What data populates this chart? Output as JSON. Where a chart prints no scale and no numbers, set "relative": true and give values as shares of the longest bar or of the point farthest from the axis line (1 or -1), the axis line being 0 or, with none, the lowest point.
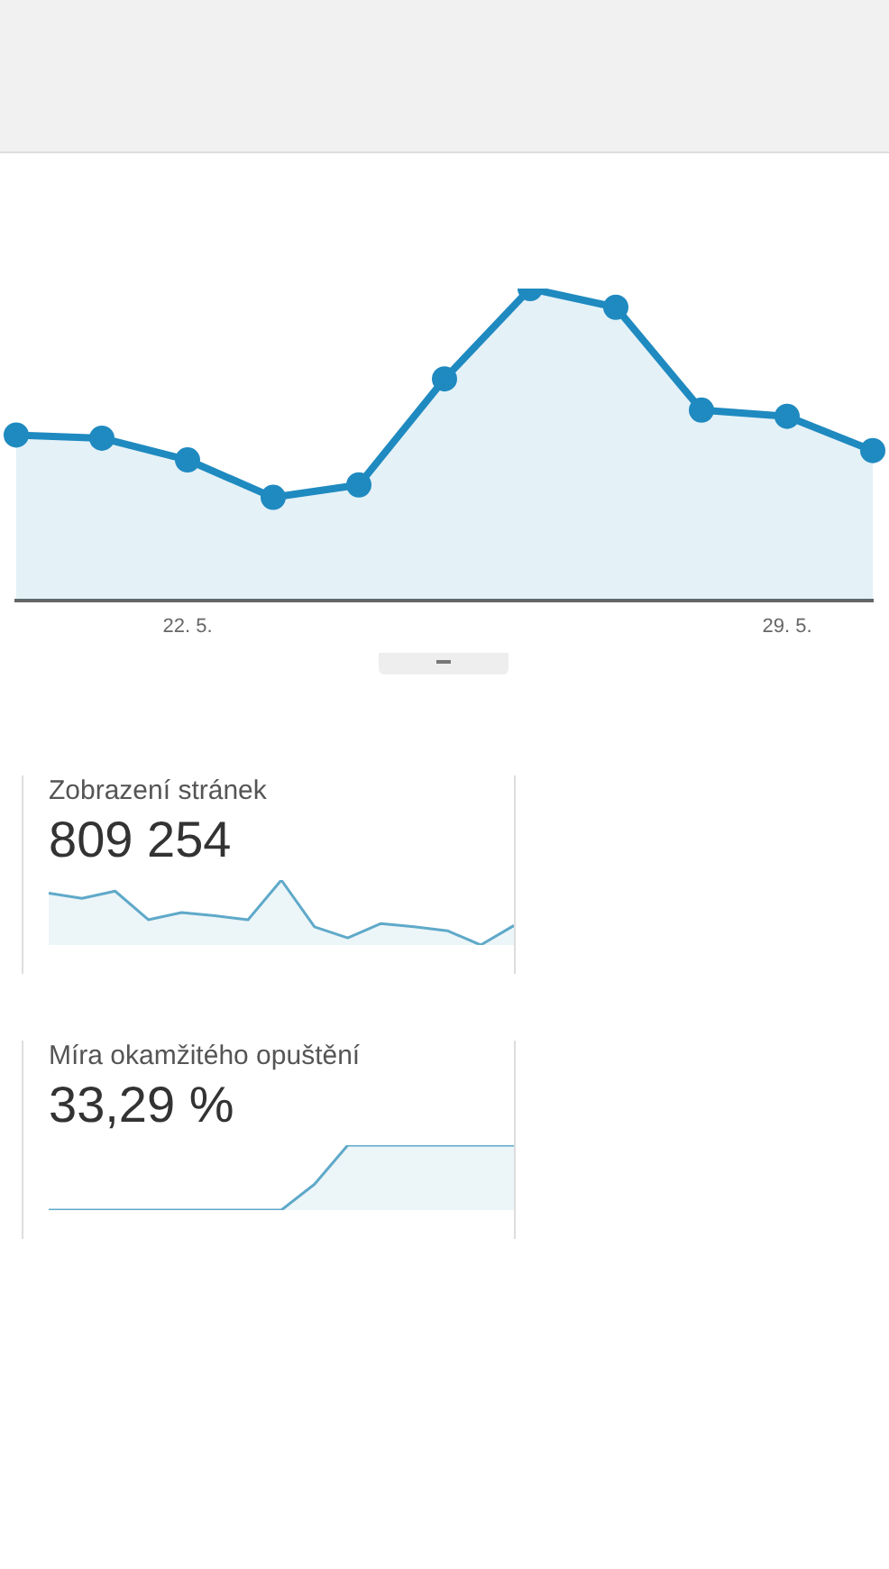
{
  "chart_data": [
    {
      "type": "area",
      "relative": true,
      "categories": [
        null,
        null,
        "22. 5.",
        null,
        null,
        null,
        null,
        null,
        null,
        "29. 5.",
        null
      ],
      "series": [
        {
          "color": "#1f8ac0",
          "values": [
            0.53,
            0.52,
            0.45,
            0.33,
            0.37,
            0.71,
            1,
            0.94,
            0.61,
            0.59,
            0.48
          ]
        }
      ],
      "marker": "circle",
      "grid": false,
      "legend": false
    },
    {
      "type": "area",
      "relative": true,
      "title": "Zobrazení stránek",
      "subtitle": "809 254",
      "categories": [
        null,
        null,
        null,
        null,
        null,
        null,
        null,
        null,
        null,
        null,
        null,
        null,
        null,
        null,
        null
      ],
      "series": [
        {
          "color": "#5fa9c9",
          "values": [
            0.8,
            0.72,
            0.83,
            0.39,
            0.5,
            0.45,
            0.39,
            1,
            0.28,
            0.11,
            0.33,
            0.28,
            0.22,
            0,
            0.3
          ]
        }
      ],
      "marker": "none",
      "grid": false,
      "legend": false
    },
    {
      "type": "area",
      "relative": true,
      "title": "Míra okamžitého opuštění",
      "subtitle": "33,29 %",
      "categories": [
        null,
        null,
        null,
        null,
        null,
        null,
        null,
        null,
        null,
        null,
        null,
        null,
        null,
        null,
        null
      ],
      "series": [
        {
          "color": "#5fa9c9",
          "values": [
            0,
            0,
            0,
            0,
            0,
            0,
            0,
            0,
            0.4,
            1,
            1,
            1,
            1,
            1,
            1
          ]
        }
      ],
      "marker": "none",
      "grid": false,
      "legend": false
    }
  ]
}
